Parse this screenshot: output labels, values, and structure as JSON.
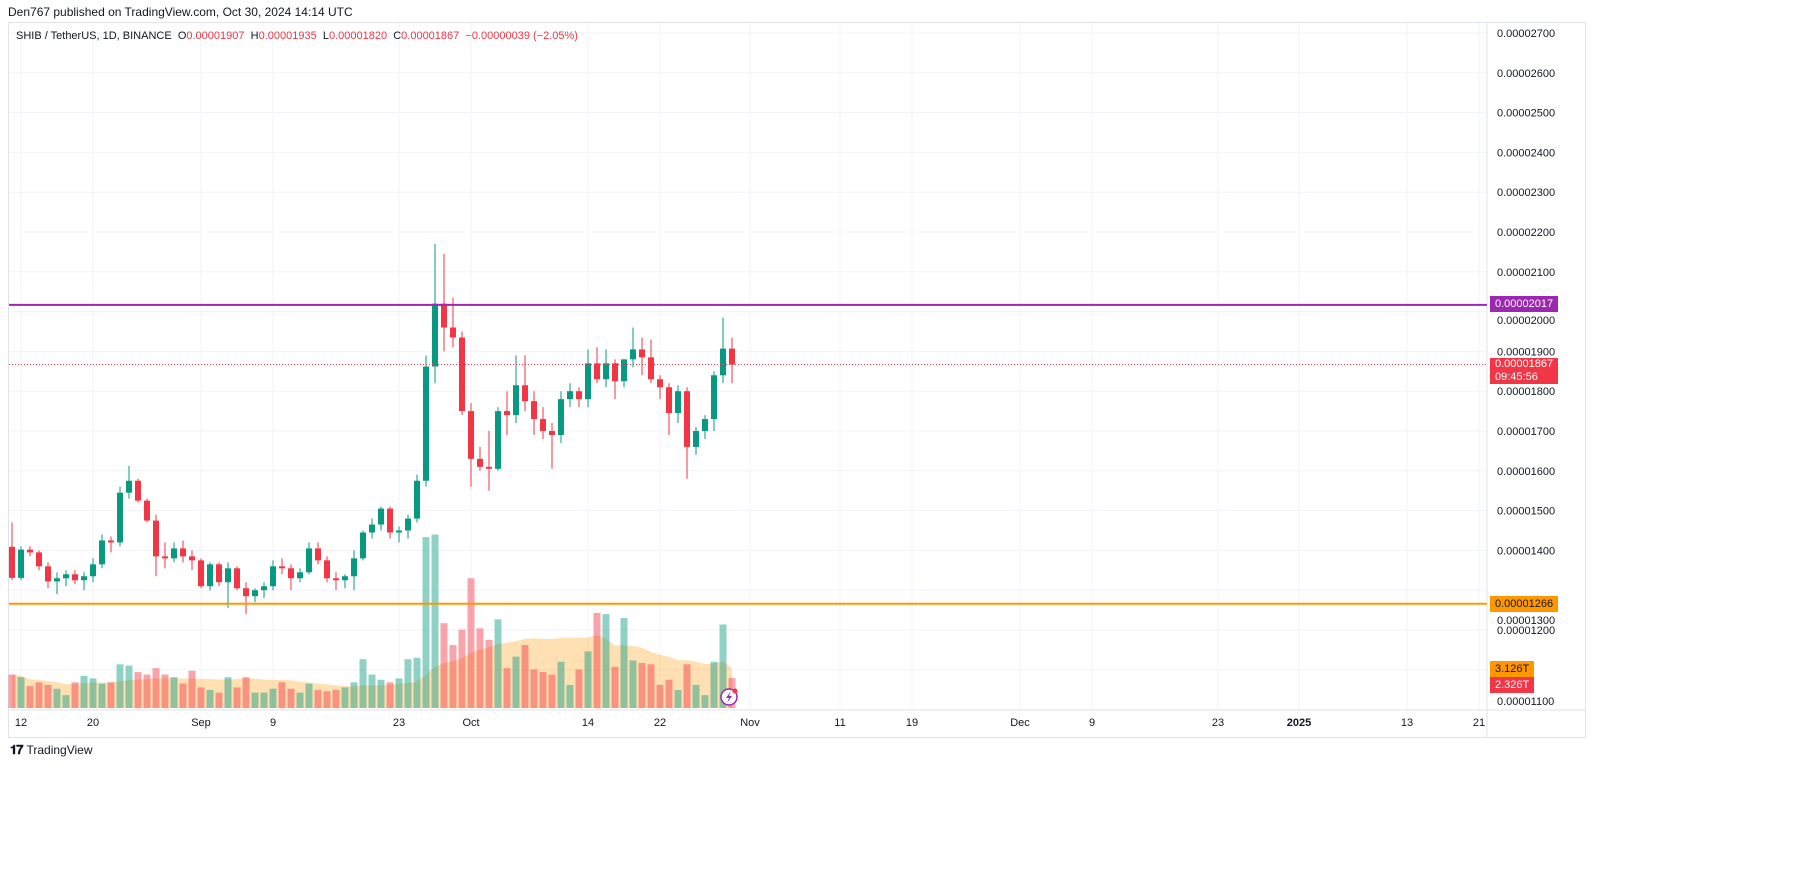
{
  "published": "Den767 published on TradingView.com, Oct 30, 2024 14:14 UTC",
  "legend": {
    "symbol": "SHIB / TetherUS, 1D, BINANCE",
    "o_label": "O",
    "o": "0.00001907",
    "h_label": "H",
    "h": "0.00001935",
    "l_label": "L",
    "l": "0.00001820",
    "c_label": "C",
    "c": "0.00001867",
    "change": "−0.00000039 (−2.05%)"
  },
  "tags": {
    "resistance": "0.00002017",
    "support": "0.00001266",
    "last_price": "0.00001867",
    "countdown": "09:45:56",
    "volume_ma": "3.126T",
    "volume": "2.326T"
  },
  "footer": {
    "brand": "TradingView"
  },
  "colors": {
    "up": "#089981",
    "down": "#f23645",
    "resistance": "#9c27b0",
    "support": "#ff9800"
  },
  "chart_data": {
    "type": "candlestick",
    "title": "SHIB / TetherUS, 1D, BINANCE",
    "start_date": "2024-08-11",
    "price_unit": "1e-8 USDT",
    "ylim": [
      1070,
      2730
    ],
    "y_ticks": [
      "0.00002700",
      "0.00002600",
      "0.00002500",
      "0.00002400",
      "0.00002300",
      "0.00002200",
      "0.00002100",
      "0.00002000",
      "0.00001900",
      "0.00001800",
      "0.00001700",
      "0.00001600",
      "0.00001500",
      "0.00001400",
      "0.00001300",
      "0.00001200",
      "0.00001100"
    ],
    "x_ticks": [
      {
        "label": "12",
        "day": 1
      },
      {
        "label": "20",
        "day": 9
      },
      {
        "label": "Sep",
        "day": 21
      },
      {
        "label": "9",
        "day": 29
      },
      {
        "label": "23",
        "day": 43
      },
      {
        "label": "Oct",
        "day": 51
      },
      {
        "label": "14",
        "day": 64
      },
      {
        "label": "22",
        "day": 72
      },
      {
        "label": "Nov",
        "day": 82
      },
      {
        "label": "11",
        "day": 92
      },
      {
        "label": "19",
        "day": 100
      },
      {
        "label": "Dec",
        "day": 112
      },
      {
        "label": "9",
        "day": 120
      },
      {
        "label": "23",
        "day": 134
      },
      {
        "label": "2025",
        "day": 143
      },
      {
        "label": "13",
        "day": 155
      },
      {
        "label": "21",
        "day": 163
      }
    ],
    "horizontal_lines": [
      {
        "name": "resistance",
        "value": 2017
      },
      {
        "name": "support",
        "value": 1266
      }
    ],
    "ohlc": [
      [
        1409,
        1470,
        1325,
        1331
      ],
      [
        1331,
        1410,
        1325,
        1402
      ],
      [
        1402,
        1410,
        1385,
        1395
      ],
      [
        1395,
        1400,
        1350,
        1360
      ],
      [
        1360,
        1370,
        1305,
        1322
      ],
      [
        1322,
        1345,
        1290,
        1330
      ],
      [
        1330,
        1350,
        1310,
        1340
      ],
      [
        1340,
        1350,
        1315,
        1325
      ],
      [
        1325,
        1345,
        1300,
        1335
      ],
      [
        1335,
        1380,
        1320,
        1365
      ],
      [
        1365,
        1440,
        1355,
        1425
      ],
      [
        1425,
        1435,
        1395,
        1420
      ],
      [
        1420,
        1560,
        1410,
        1545
      ],
      [
        1545,
        1612,
        1530,
        1575
      ],
      [
        1575,
        1580,
        1520,
        1525
      ],
      [
        1525,
        1530,
        1470,
        1475
      ],
      [
        1475,
        1490,
        1335,
        1385
      ],
      [
        1385,
        1420,
        1355,
        1380
      ],
      [
        1380,
        1420,
        1370,
        1405
      ],
      [
        1405,
        1425,
        1370,
        1385
      ],
      [
        1385,
        1400,
        1350,
        1375
      ],
      [
        1375,
        1380,
        1305,
        1310
      ],
      [
        1310,
        1370,
        1300,
        1365
      ],
      [
        1365,
        1370,
        1310,
        1320
      ],
      [
        1320,
        1370,
        1255,
        1355
      ],
      [
        1355,
        1360,
        1300,
        1305
      ],
      [
        1305,
        1320,
        1240,
        1285
      ],
      [
        1285,
        1305,
        1270,
        1300
      ],
      [
        1300,
        1320,
        1280,
        1310
      ],
      [
        1310,
        1375,
        1300,
        1360
      ],
      [
        1360,
        1380,
        1340,
        1355
      ],
      [
        1355,
        1365,
        1300,
        1330
      ],
      [
        1330,
        1355,
        1320,
        1345
      ],
      [
        1345,
        1420,
        1340,
        1405
      ],
      [
        1405,
        1420,
        1365,
        1375
      ],
      [
        1375,
        1385,
        1320,
        1330
      ],
      [
        1330,
        1345,
        1300,
        1325
      ],
      [
        1325,
        1340,
        1305,
        1335
      ],
      [
        1335,
        1400,
        1300,
        1380
      ],
      [
        1380,
        1450,
        1375,
        1445
      ],
      [
        1445,
        1480,
        1430,
        1465
      ],
      [
        1465,
        1510,
        1450,
        1505
      ],
      [
        1505,
        1510,
        1430,
        1445
      ],
      [
        1445,
        1460,
        1420,
        1450
      ],
      [
        1450,
        1490,
        1430,
        1480
      ],
      [
        1480,
        1590,
        1470,
        1575
      ],
      [
        1575,
        1890,
        1560,
        1862
      ],
      [
        1862,
        2170,
        1820,
        2020
      ],
      [
        2020,
        2145,
        1900,
        1960
      ],
      [
        1960,
        2035,
        1910,
        1935
      ],
      [
        1935,
        1950,
        1740,
        1750
      ],
      [
        1750,
        1770,
        1560,
        1630
      ],
      [
        1630,
        1660,
        1600,
        1610
      ],
      [
        1610,
        1700,
        1550,
        1605
      ],
      [
        1605,
        1760,
        1600,
        1750
      ],
      [
        1750,
        1800,
        1690,
        1740
      ],
      [
        1740,
        1890,
        1720,
        1815
      ],
      [
        1815,
        1890,
        1750,
        1775
      ],
      [
        1775,
        1800,
        1690,
        1730
      ],
      [
        1730,
        1760,
        1680,
        1700
      ],
      [
        1700,
        1720,
        1605,
        1690
      ],
      [
        1690,
        1800,
        1670,
        1780
      ],
      [
        1780,
        1820,
        1760,
        1800
      ],
      [
        1800,
        1810,
        1760,
        1780
      ],
      [
        1780,
        1905,
        1760,
        1870
      ],
      [
        1870,
        1910,
        1820,
        1830
      ],
      [
        1830,
        1905,
        1810,
        1870
      ],
      [
        1870,
        1880,
        1780,
        1825
      ],
      [
        1825,
        1880,
        1810,
        1880
      ],
      [
        1880,
        1960,
        1860,
        1905
      ],
      [
        1905,
        1935,
        1840,
        1885
      ],
      [
        1885,
        1930,
        1820,
        1830
      ],
      [
        1830,
        1840,
        1780,
        1810
      ],
      [
        1810,
        1820,
        1690,
        1745
      ],
      [
        1745,
        1815,
        1720,
        1800
      ],
      [
        1800,
        1810,
        1580,
        1660
      ],
      [
        1660,
        1710,
        1640,
        1700
      ],
      [
        1700,
        1740,
        1680,
        1730
      ],
      [
        1730,
        1850,
        1700,
        1840
      ],
      [
        1840,
        1985,
        1820,
        1907
      ],
      [
        1907,
        1935,
        1820,
        1867
      ]
    ],
    "volume_unit": "T",
    "volume": [
      2.6,
      2.4,
      1.7,
      2.0,
      1.8,
      1.5,
      1.0,
      2.0,
      2.5,
      2.3,
      1.9,
      2.0,
      3.4,
      3.3,
      2.8,
      2.6,
      3.1,
      2.6,
      2.4,
      1.9,
      2.9,
      1.6,
      1.4,
      1.2,
      2.4,
      1.6,
      2.4,
      1.2,
      1.2,
      1.5,
      2.0,
      1.5,
      1.2,
      1.9,
      1.4,
      1.3,
      1.4,
      1.6,
      2.0,
      3.8,
      2.6,
      2.2,
      2.0,
      2.3,
      3.8,
      3.9,
      13.3,
      13.5,
      6.6,
      4.9,
      6.1,
      10.1,
      6.2,
      5.3,
      6.9,
      3.1,
      4.0,
      4.9,
      3.0,
      2.8,
      2.6,
      3.6,
      1.8,
      3.0,
      4.4,
      7.4,
      7.3,
      3.2,
      7.0,
      3.7,
      3.5,
      3.4,
      1.8,
      2.2,
      1.4,
      3.4,
      1.8,
      1.0,
      3.6,
      6.5,
      2.326
    ],
    "volume_ma_last": 3.126
  }
}
